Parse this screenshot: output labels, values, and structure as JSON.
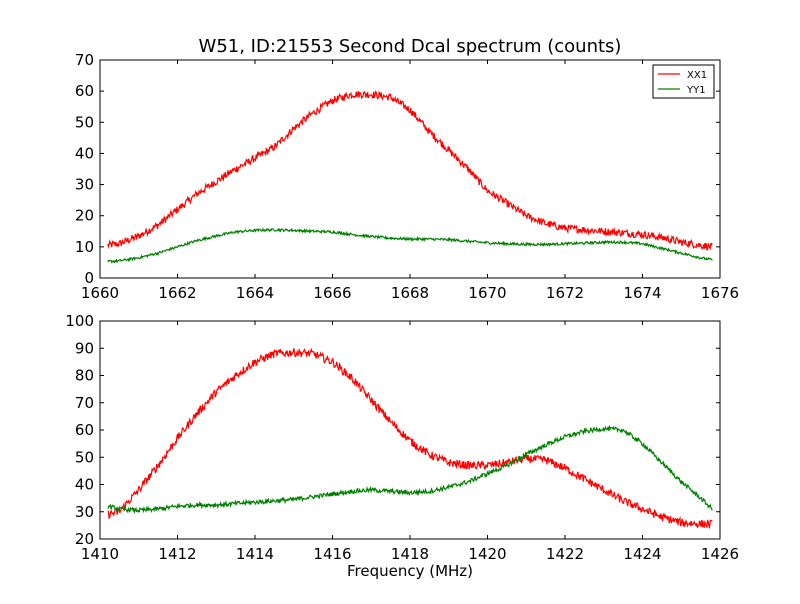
{
  "title": "W51, ID:21553 Second Dcal spectrum (counts)",
  "colors": {
    "XX1": "#ff0000",
    "YY1": "#008000"
  },
  "chart_data": [
    {
      "type": "line",
      "title": "W51, ID:21553 Second Dcal spectrum (counts)",
      "xlabel": "",
      "ylabel": "",
      "xlim": [
        1660,
        1676
      ],
      "ylim": [
        0,
        70
      ],
      "xticks": [
        "1660",
        "1662",
        "1664",
        "1666",
        "1668",
        "1670",
        "1672",
        "1674",
        "1676"
      ],
      "yticks": [
        "0",
        "10",
        "20",
        "30",
        "40",
        "50",
        "60",
        "70"
      ],
      "grid": false,
      "legend": "top-right",
      "series": [
        {
          "name": "XX1",
          "color": "#ff0000",
          "noise": 1.2,
          "x": [
            1660.2,
            1660.5,
            1661.0,
            1661.5,
            1662.0,
            1662.5,
            1663.0,
            1663.5,
            1664.0,
            1664.5,
            1665.0,
            1665.5,
            1666.0,
            1666.5,
            1667.0,
            1667.5,
            1668.0,
            1668.5,
            1669.0,
            1669.5,
            1670.0,
            1670.5,
            1671.0,
            1671.5,
            1672.0,
            1672.5,
            1673.0,
            1673.5,
            1674.0,
            1674.5,
            1675.0,
            1675.5,
            1675.8
          ],
          "y": [
            10.5,
            11,
            13.5,
            17,
            22,
            27,
            31,
            35,
            38.5,
            42,
            48,
            53,
            57,
            59,
            59,
            58,
            54,
            47,
            41,
            35,
            28,
            24,
            20,
            17.5,
            16,
            15.5,
            15,
            14.5,
            14,
            13,
            11.5,
            10.5,
            10
          ]
        },
        {
          "name": "YY1",
          "color": "#008000",
          "noise": 0.4,
          "x": [
            1660.2,
            1660.5,
            1661.0,
            1661.5,
            1662.0,
            1662.5,
            1663.0,
            1663.5,
            1664.0,
            1664.5,
            1665.0,
            1665.5,
            1666.0,
            1666.5,
            1667.0,
            1667.5,
            1668.0,
            1668.5,
            1669.0,
            1669.5,
            1670.0,
            1670.5,
            1671.0,
            1671.5,
            1672.0,
            1672.5,
            1673.0,
            1673.5,
            1674.0,
            1674.5,
            1675.0,
            1675.5,
            1675.8
          ],
          "y": [
            5.3,
            5.5,
            6.5,
            8,
            10,
            12,
            13.5,
            14.8,
            15.3,
            15.5,
            15.3,
            15,
            14.8,
            14,
            13.3,
            12.8,
            12.5,
            12.5,
            12.3,
            11.8,
            11.3,
            11,
            10.8,
            10.8,
            11,
            11.2,
            11.5,
            11.5,
            11,
            9.5,
            8,
            6.5,
            5.8
          ]
        }
      ]
    },
    {
      "type": "line",
      "title": "",
      "xlabel": "Frequency (MHz)",
      "ylabel": "",
      "xlim": [
        1410,
        1426
      ],
      "ylim": [
        20,
        100
      ],
      "xticks": [
        "1410",
        "1412",
        "1414",
        "1416",
        "1418",
        "1420",
        "1422",
        "1424",
        "1426"
      ],
      "yticks": [
        "20",
        "30",
        "40",
        "50",
        "60",
        "70",
        "80",
        "90",
        "100"
      ],
      "grid": false,
      "series": [
        {
          "color": "#ff0000",
          "noise": 1.5,
          "x": [
            1410.2,
            1410.5,
            1411.0,
            1411.5,
            1412.0,
            1412.5,
            1413.0,
            1413.5,
            1414.0,
            1414.5,
            1415.0,
            1415.5,
            1416.0,
            1416.5,
            1417.0,
            1417.5,
            1418.0,
            1418.5,
            1419.0,
            1419.5,
            1420.0,
            1420.5,
            1421.0,
            1421.5,
            1422.0,
            1422.5,
            1423.0,
            1423.5,
            1424.0,
            1424.5,
            1425.0,
            1425.5,
            1425.8
          ],
          "y": [
            29,
            30,
            38,
            47,
            57,
            66,
            74,
            80,
            85,
            88,
            88.5,
            88,
            85,
            79,
            71,
            63,
            56,
            51,
            48,
            47,
            47,
            48,
            49.5,
            49,
            46,
            42,
            38,
            34,
            31,
            28,
            26,
            25.5,
            25.5
          ]
        },
        {
          "color": "#008000",
          "noise": 0.8,
          "x": [
            1410.2,
            1410.5,
            1411.0,
            1411.5,
            1412.0,
            1412.5,
            1413.0,
            1413.5,
            1414.0,
            1414.5,
            1415.0,
            1415.5,
            1416.0,
            1416.5,
            1417.0,
            1417.5,
            1418.0,
            1418.5,
            1419.0,
            1419.5,
            1420.0,
            1420.5,
            1421.0,
            1421.5,
            1422.0,
            1422.5,
            1423.0,
            1423.5,
            1424.0,
            1424.5,
            1425.0,
            1425.5,
            1425.8
          ],
          "y": [
            32,
            31,
            30.5,
            31,
            32,
            32.5,
            32.5,
            33,
            33.5,
            34,
            34.5,
            35.5,
            36.5,
            37.5,
            38,
            37.5,
            37,
            37.5,
            39,
            41,
            44,
            47,
            51,
            54.5,
            57.5,
            59.5,
            60.5,
            60,
            55,
            48,
            41,
            35,
            31
          ]
        }
      ]
    }
  ]
}
